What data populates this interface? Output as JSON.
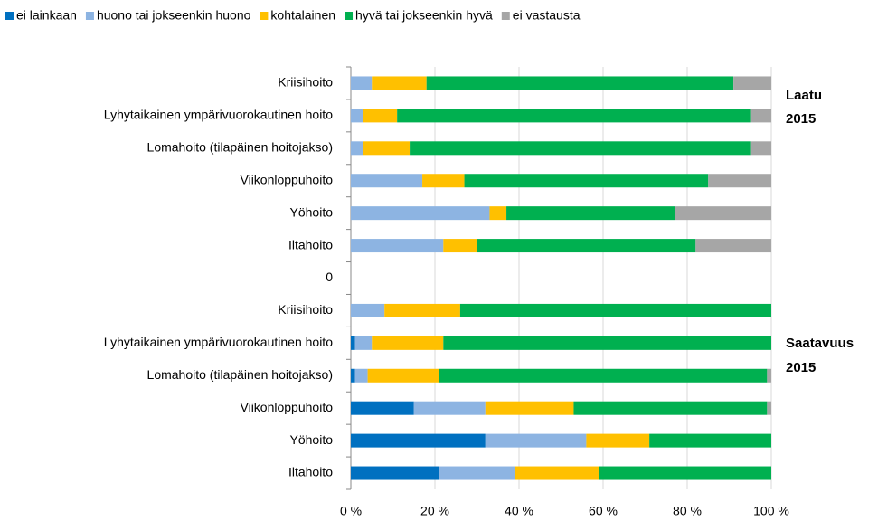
{
  "chart_data": {
    "type": "stacked_barh",
    "categories": [
      "Kriisihoito",
      "Lyhytaikainen ympärivuorokautinen hoito",
      "Lomahoito (tilapäinen hoitojakso)",
      "Viikonloppuhoito",
      "Yöhoito",
      "Iltahoito",
      "0",
      "Kriisihoito",
      "Lyhytaikainen ympärivuorokautinen hoito",
      "Lomahoito (tilapäinen hoitojakso)",
      "Viikonloppuhoito",
      "Yöhoito",
      "Iltahoito"
    ],
    "series": [
      {
        "name": "ei lainkaan",
        "color": "#0070c0",
        "values": [
          0,
          0,
          0,
          0,
          0,
          0,
          null,
          0,
          1,
          1,
          15,
          32,
          21
        ]
      },
      {
        "name": "huono tai jokseenkin huono",
        "color": "#8db4e2",
        "values": [
          5,
          3,
          3,
          17,
          33,
          22,
          null,
          8,
          4,
          3,
          17,
          24,
          18
        ]
      },
      {
        "name": "kohtalainen",
        "color": "#ffc000",
        "values": [
          13,
          8,
          11,
          10,
          4,
          8,
          null,
          18,
          17,
          17,
          21,
          15,
          20
        ]
      },
      {
        "name": "hyvä tai jokseenkin hyvä",
        "color": "#00b050",
        "values": [
          73,
          84,
          81,
          58,
          40,
          52,
          null,
          74,
          78,
          78,
          46,
          29,
          41
        ]
      },
      {
        "name": "ei vastausta",
        "color": "#a6a6a6",
        "values": [
          9,
          5,
          5,
          15,
          23,
          18,
          null,
          0,
          0,
          1,
          1,
          0,
          0
        ]
      }
    ],
    "xlim": [
      0,
      100
    ],
    "xticks": [
      {
        "value": 0,
        "label": "0 %"
      },
      {
        "value": 20,
        "label": "20 %"
      },
      {
        "value": 40,
        "label": "40 %"
      },
      {
        "value": 60,
        "label": "60 %"
      },
      {
        "value": 80,
        "label": "80 %"
      },
      {
        "value": 100,
        "label": "100 %"
      }
    ],
    "grid": true,
    "legend": "top",
    "annotations": [
      "Laatu",
      "2015",
      "Saatavuus",
      "2015"
    ]
  }
}
